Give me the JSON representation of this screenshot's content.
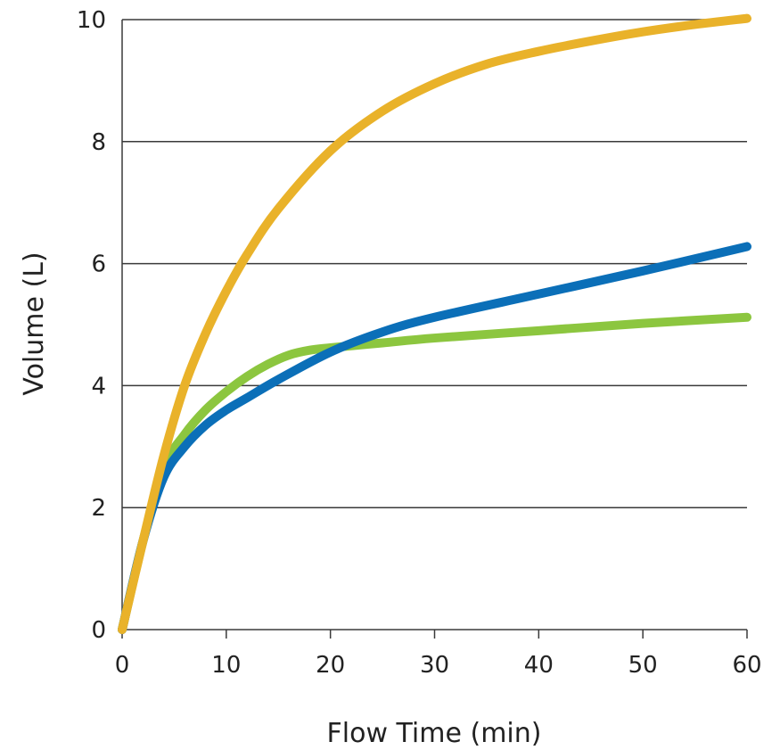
{
  "chart_data": {
    "type": "line",
    "title": "",
    "xlabel": "Flow Time (min)",
    "ylabel": "Volume (L)",
    "xlim": [
      0,
      60
    ],
    "ylim": [
      0,
      10
    ],
    "xticks": [
      0,
      10,
      20,
      30,
      40,
      50,
      60
    ],
    "yticks": [
      0,
      2,
      4,
      6,
      8,
      10
    ],
    "xtick_labels": [
      "0",
      "10",
      "20",
      "30",
      "40",
      "50",
      "60"
    ],
    "ytick_labels": [
      "0",
      "2",
      "4",
      "6",
      "8",
      "10"
    ],
    "grid": "horizontal",
    "legend": "none",
    "series": [
      {
        "color": "#8cc63f",
        "x": [
          0,
          2,
          4,
          6,
          8,
          10,
          12,
          14,
          16,
          18,
          20,
          25,
          30,
          40,
          50,
          60
        ],
        "y": [
          0,
          1.45,
          2.65,
          3.2,
          3.6,
          3.9,
          4.15,
          4.35,
          4.5,
          4.58,
          4.62,
          4.7,
          4.78,
          4.9,
          5.02,
          5.12
        ]
      },
      {
        "color": "#0b6fb8",
        "x": [
          0,
          2,
          4,
          6,
          8,
          10,
          12,
          15,
          20,
          25,
          30,
          40,
          50,
          60
        ],
        "y": [
          0,
          1.45,
          2.5,
          3.0,
          3.35,
          3.6,
          3.8,
          4.1,
          4.55,
          4.88,
          5.12,
          5.5,
          5.88,
          6.28
        ]
      },
      {
        "color": "#e9b22a",
        "x": [
          0,
          2,
          4,
          6,
          8,
          10,
          12,
          15,
          20,
          25,
          30,
          35,
          40,
          45,
          50,
          55,
          60
        ],
        "y": [
          0,
          1.45,
          2.85,
          4.0,
          4.85,
          5.55,
          6.15,
          6.9,
          7.85,
          8.5,
          8.95,
          9.27,
          9.48,
          9.65,
          9.8,
          9.92,
          10.02
        ]
      }
    ]
  }
}
